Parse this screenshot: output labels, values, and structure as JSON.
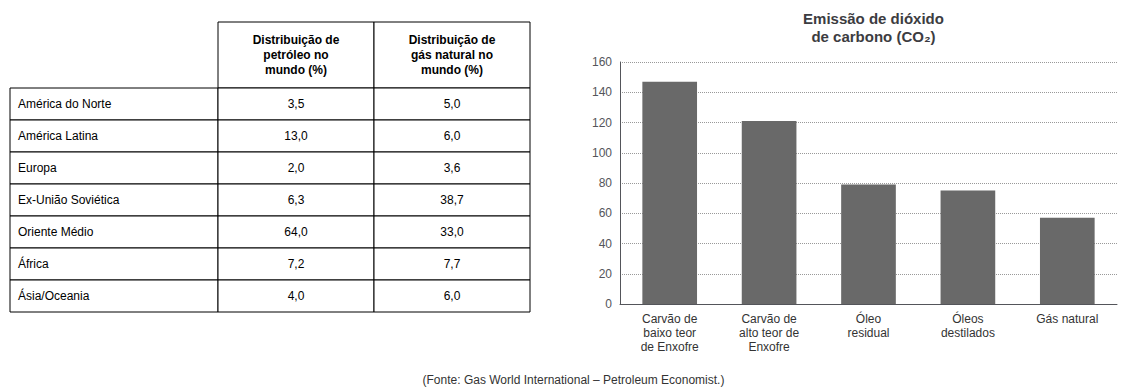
{
  "chart_data": [
    {
      "type": "table",
      "categories": [
        "América do Norte",
        "América Latina",
        "Europa",
        "Ex-União Soviética",
        "Oriente Médio",
        "África",
        "Ásia/Oceania"
      ],
      "series": [
        {
          "name": "Distribuição de\npetróleo no\nmundo (%)",
          "values": [
            3.5,
            13.0,
            2.0,
            6.3,
            64.0,
            7.2,
            4.0
          ],
          "value_labels": [
            "3,5",
            "13,0",
            "2,0",
            "6,3",
            "64,0",
            "7,2",
            "4,0"
          ]
        },
        {
          "name": "Distribuição de\ngás natural no\nmundo (%)",
          "values": [
            5.0,
            6.0,
            3.6,
            38.7,
            33.0,
            7.7,
            6.0
          ],
          "value_labels": [
            "5,0",
            "6,0",
            "3,6",
            "38,7",
            "33,0",
            "7,7",
            "6,0"
          ]
        }
      ]
    },
    {
      "type": "bar",
      "title": "Emissão de dióxido\nde carbono (CO₂)",
      "categories": [
        "Carvão de\nbaixo teor\nde Enxofre",
        "Carvão de\nalto teor de\nEnxofre",
        "Óleo\nresidual",
        "Óleos\ndestilados",
        "Gás natural"
      ],
      "values": [
        147,
        121,
        79,
        75,
        57
      ],
      "color": "#696969",
      "ylim": [
        0,
        160
      ],
      "yticks": [
        0,
        20,
        40,
        60,
        80,
        100,
        120,
        140,
        160
      ],
      "grid": true,
      "footnote": "(Fonte: Gas World International – Petroleum Economist.)"
    }
  ]
}
